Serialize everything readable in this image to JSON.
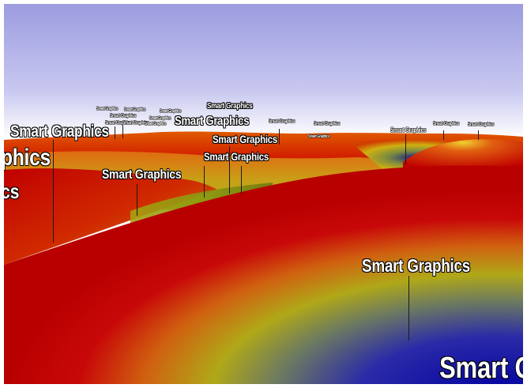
{
  "scene": {
    "label_text": "Smart Graphics",
    "colors": {
      "sky_top": "#9c9ce0",
      "sky_bottom": "#ffffff",
      "terrain_red": "#cc0000",
      "terrain_orange": "#e06a10",
      "terrain_yellow": "#c8c820",
      "terrain_green": "#8aa010",
      "terrain_blue": "#1a1ab0"
    },
    "labels": [
      {
        "text": "Smart Graphics"
      },
      {
        "text": "Smart Graphics"
      },
      {
        "text": "Smart Graphics"
      },
      {
        "text": "Smart Graphics"
      },
      {
        "text": "Smart Graphics"
      },
      {
        "text": "Smart Graphics"
      },
      {
        "text": "Smart Graphics"
      },
      {
        "text": "Smart Graphics"
      },
      {
        "text": "Smart Graphics"
      },
      {
        "text": "Smart Graphics"
      },
      {
        "text": "Smart Graphics"
      },
      {
        "text": "Smart Graphics"
      },
      {
        "text": "Smart Graphics"
      },
      {
        "text": "Smart Graphics"
      },
      {
        "text": "Smart Graphics"
      },
      {
        "text": "Smart Graphics"
      },
      {
        "text": "Smart Graphics"
      },
      {
        "text": "Smart Graphics"
      },
      {
        "text": "Smart Graphics"
      },
      {
        "text": "Smart Graphics"
      },
      {
        "text": "Smart Graphics"
      },
      {
        "text": "phics"
      },
      {
        "text": "cs"
      },
      {
        "text": "Smart Gra"
      }
    ]
  }
}
